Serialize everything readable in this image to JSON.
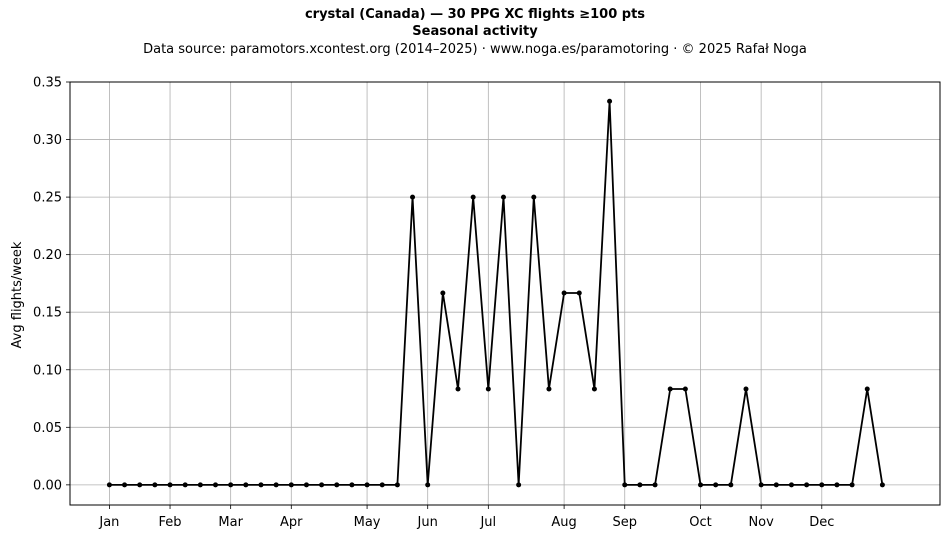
{
  "header": {
    "title_line1": "crystal (Canada)  —  30 PPG XC flights ≥100 pts",
    "title_line2": "Seasonal activity",
    "subtitle": "Data source: paramotors.xcontest.org (2014–2025)  ·  www.noga.es/paramotoring  ·  © 2025 Rafał Noga"
  },
  "chart_data": {
    "type": "line",
    "title": "crystal (Canada)  —  30 PPG XC flights ≥100 pts",
    "subtitle": "Seasonal activity",
    "xlabel": "",
    "ylabel": "Avg flights/week",
    "x_unit": "week of year",
    "x_tick_labels": [
      "Jan",
      "Feb",
      "Mar",
      "Apr",
      "May",
      "Jun",
      "Jul",
      "Aug",
      "Sep",
      "Oct",
      "Nov",
      "Dec"
    ],
    "x_tick_weeks": [
      1,
      5,
      9,
      13,
      18,
      22,
      26,
      31,
      35,
      40,
      44,
      48
    ],
    "xlim": [
      -1.6,
      55.8
    ],
    "ylim": [
      -0.0175,
      0.35
    ],
    "y_ticks": [
      "0.00",
      "0.05",
      "0.10",
      "0.15",
      "0.20",
      "0.25",
      "0.30",
      "0.35"
    ],
    "grid": true,
    "line_color": "#000000",
    "grid_color": "#b0b0b0",
    "series": [
      {
        "x": [
          1,
          2,
          3,
          4,
          5,
          6,
          7,
          8,
          9,
          10,
          11,
          12,
          13,
          14,
          15,
          16,
          17,
          18,
          19,
          20,
          21,
          22,
          23,
          24,
          25,
          26,
          27,
          28,
          29,
          30,
          31,
          32,
          33,
          34,
          35,
          36,
          37,
          38,
          39,
          40,
          41,
          42,
          43,
          44,
          45,
          46,
          47,
          48,
          49,
          50,
          51,
          52
        ],
        "values": [
          0,
          0,
          0,
          0,
          0,
          0,
          0,
          0,
          0,
          0,
          0,
          0,
          0,
          0,
          0,
          0,
          0,
          0,
          0,
          0,
          0.25,
          0,
          0.1667,
          0.0833,
          0.25,
          0.0833,
          0.25,
          0,
          0.25,
          0.0833,
          0.1667,
          0.1667,
          0.0833,
          0.3333,
          0,
          0,
          0,
          0.0833,
          0.0833,
          0,
          0,
          0,
          0.0833,
          0,
          0,
          0,
          0,
          0,
          0,
          0,
          0.0833,
          0
        ]
      }
    ]
  }
}
